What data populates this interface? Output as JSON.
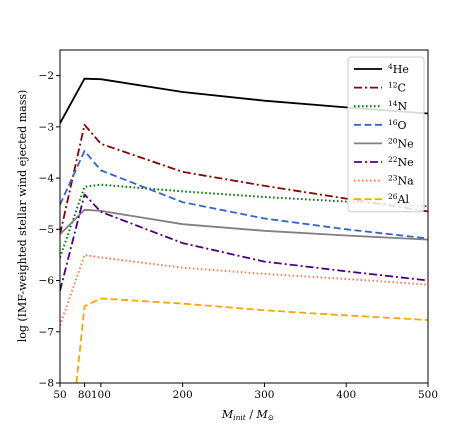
{
  "chart_data": {
    "type": "line",
    "xlabel": "M_init / M_⊙",
    "ylabel": "log (IMF-weighted stellar wind ejected mass)",
    "xlim": [
      50,
      500
    ],
    "ylim": [
      -8,
      -1.5
    ],
    "xticks": [
      50,
      80,
      100,
      200,
      300,
      400,
      500
    ],
    "yticks": [
      -8,
      -7,
      -6,
      -5,
      -4,
      -3,
      -2
    ],
    "xtick_labels": [
      "50",
      "80",
      "100",
      "200",
      "300",
      "400",
      "500"
    ],
    "ytick_labels": [
      "−8",
      "−7",
      "−6",
      "−5",
      "−4",
      "−3",
      "−2"
    ],
    "legend_position": "top-right",
    "grid": false,
    "series": [
      {
        "isotope": "He",
        "mass": "4",
        "color": "#000000",
        "style": "solid",
        "x": [
          50,
          80,
          100,
          200,
          300,
          400,
          500
        ],
        "y": [
          -2.93,
          -2.06,
          -2.07,
          -2.32,
          -2.49,
          -2.62,
          -2.74
        ]
      },
      {
        "isotope": "C",
        "mass": "12",
        "color": "#8b0000",
        "style": "dashdot",
        "x": [
          50,
          80,
          100,
          200,
          300,
          400,
          500
        ],
        "y": [
          -5.1,
          -2.96,
          -3.33,
          -3.88,
          -4.15,
          -4.4,
          -4.65
        ]
      },
      {
        "isotope": "N",
        "mass": "14",
        "color": "#008000",
        "style": "dotted",
        "x": [
          50,
          80,
          100,
          200,
          300,
          400,
          500
        ],
        "y": [
          -5.55,
          -4.17,
          -4.13,
          -4.26,
          -4.37,
          -4.46,
          -4.55
        ]
      },
      {
        "isotope": "O",
        "mass": "16",
        "color": "#3366cc",
        "style": "dashed",
        "x": [
          50,
          80,
          100,
          200,
          300,
          400,
          500
        ],
        "y": [
          -4.52,
          -3.47,
          -3.85,
          -4.47,
          -4.79,
          -5.0,
          -5.18
        ]
      },
      {
        "isotope": "Ne",
        "mass": "20",
        "color": "#808080",
        "style": "solid",
        "x": [
          50,
          80,
          100,
          200,
          300,
          400,
          500
        ],
        "y": [
          -5.1,
          -4.62,
          -4.64,
          -4.9,
          -5.03,
          -5.12,
          -5.2
        ]
      },
      {
        "isotope": "Ne",
        "mass": "22",
        "color": "#4b0082",
        "style": "dashdot",
        "x": [
          50,
          80,
          100,
          200,
          300,
          400,
          500
        ],
        "y": [
          -6.2,
          -4.32,
          -4.66,
          -5.27,
          -5.63,
          -5.82,
          -6.0
        ]
      },
      {
        "isotope": "Na",
        "mass": "23",
        "color": "#ff7f50",
        "style": "dotted",
        "x": [
          50,
          80,
          100,
          200,
          300,
          400,
          500
        ],
        "y": [
          -6.88,
          -5.5,
          -5.55,
          -5.75,
          -5.87,
          -5.97,
          -6.08
        ]
      },
      {
        "isotope": "Al",
        "mass": "26",
        "color": "#ffa500",
        "style": "dashed",
        "x": [
          70,
          80,
          100,
          200,
          300,
          400,
          500
        ],
        "y": [
          -8.0,
          -6.5,
          -6.35,
          -6.45,
          -6.58,
          -6.68,
          -6.77
        ]
      }
    ]
  }
}
